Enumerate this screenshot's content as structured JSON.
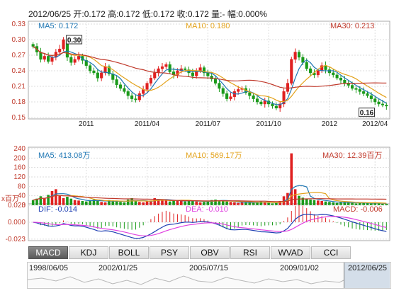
{
  "header": {
    "text": "2012/06/25 开:0.172 高:0.172 低:0.172 收:0.172 量:- 幅:0.000%"
  },
  "colors": {
    "ma5": "#1f77b4",
    "ma10": "#e3a21a",
    "ma30": "#c0392b",
    "up": "#e02020",
    "down": "#1a9a1a",
    "dif": "#1f3fb3",
    "dea": "#e040e0",
    "frame": "#aaaaaa",
    "grid": "#dddddd"
  },
  "legends": {
    "price": {
      "ma5": "MA5: 0.172",
      "ma10": "MA10: 0.180",
      "ma30": "MA30: 0.213"
    },
    "volume": {
      "ma5": "MA5: 413.08万",
      "ma10": "MA10: 569.17万",
      "ma30": "MA30: 12.39百万"
    },
    "macd": {
      "dif": "DIF: -0.014",
      "dea": "DEA: -0.010",
      "macd": "MACD: -0.006"
    }
  },
  "tabs": [
    "MACD",
    "KDJ",
    "BOLL",
    "PSY",
    "OBV",
    "RSI",
    "WVAD",
    "CCI"
  ],
  "navigator": {
    "dates": [
      "1998/06/05",
      "2002/01/25",
      "2005/07/15",
      "2009/01/02",
      "2012/06/25"
    ]
  },
  "chart_data": [
    {
      "type": "candlestick",
      "x_tick_labels": [
        "2011",
        "2011/04",
        "2011/07",
        "2011/10",
        "2012",
        "2012/04"
      ],
      "y_ticks": [
        "0.33",
        "0.30",
        "0.27",
        "0.24",
        "0.21",
        "0.18",
        "0.15"
      ],
      "ylim": [
        0.15,
        0.33
      ],
      "annotations": [
        {
          "text": "0.30",
          "value": 0.3
        },
        {
          "text": "0.16",
          "value": 0.16
        }
      ],
      "close": [
        0.287,
        0.276,
        0.262,
        0.268,
        0.258,
        0.266,
        0.276,
        0.282,
        0.3,
        0.266,
        0.256,
        0.262,
        0.268,
        0.26,
        0.25,
        0.24,
        0.236,
        0.226,
        0.236,
        0.248,
        0.234,
        0.223,
        0.213,
        0.206,
        0.2,
        0.192,
        0.186,
        0.184,
        0.196,
        0.204,
        0.216,
        0.226,
        0.236,
        0.244,
        0.248,
        0.252,
        0.238,
        0.232,
        0.24,
        0.244,
        0.242,
        0.236,
        0.23,
        0.24,
        0.246,
        0.236,
        0.23,
        0.224,
        0.216,
        0.206,
        0.196,
        0.186,
        0.19,
        0.2,
        0.204,
        0.206,
        0.198,
        0.192,
        0.186,
        0.18,
        0.176,
        0.182,
        0.176,
        0.172,
        0.168,
        0.176,
        0.2,
        0.216,
        0.262,
        0.276,
        0.266,
        0.256,
        0.244,
        0.236,
        0.232,
        0.24,
        0.25,
        0.242,
        0.236,
        0.232,
        0.226,
        0.222,
        0.216,
        0.212,
        0.206,
        0.204,
        0.2,
        0.196,
        0.192,
        0.186,
        0.18,
        0.176,
        0.174,
        0.172
      ],
      "volume_ylim": [
        0,
        240
      ],
      "volume_y_ticks": [
        "240",
        "200",
        "160",
        "120",
        "80",
        "40",
        "0"
      ],
      "volume_unit": "x百万",
      "volume": [
        22,
        28,
        38,
        30,
        44,
        60,
        68,
        42,
        30,
        36,
        28,
        22,
        20,
        18,
        16,
        22,
        24,
        18,
        14,
        12,
        22,
        20,
        16,
        14,
        12,
        24,
        30,
        18,
        14,
        12,
        18,
        20,
        30,
        26,
        24,
        20,
        16,
        22,
        20,
        18,
        16,
        22,
        18,
        16,
        12,
        14,
        18,
        22,
        24,
        20,
        18,
        16,
        14,
        12,
        10,
        12,
        14,
        12,
        10,
        12,
        16,
        14,
        10,
        8,
        10,
        18,
        38,
        52,
        220,
        68,
        40,
        32,
        28,
        24,
        22,
        20,
        18,
        16,
        14,
        12,
        10,
        12,
        14,
        12,
        10,
        8,
        10,
        12,
        10,
        8,
        10,
        8,
        6,
        6
      ],
      "macd_y_ticks": [
        "0.023",
        "0.000",
        "-0.023"
      ],
      "macd_ylim": [
        -0.025,
        0.025
      ]
    }
  ]
}
